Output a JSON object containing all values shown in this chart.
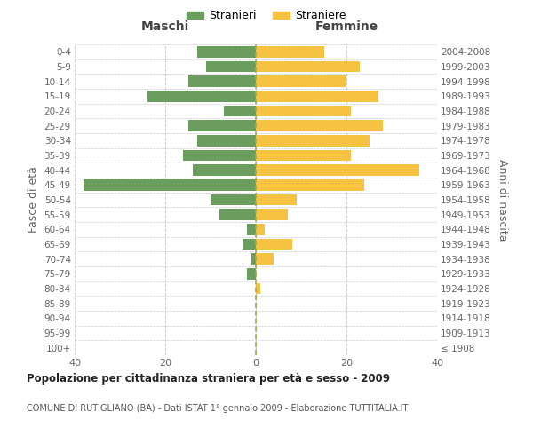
{
  "age_groups": [
    "100+",
    "95-99",
    "90-94",
    "85-89",
    "80-84",
    "75-79",
    "70-74",
    "65-69",
    "60-64",
    "55-59",
    "50-54",
    "45-49",
    "40-44",
    "35-39",
    "30-34",
    "25-29",
    "20-24",
    "15-19",
    "10-14",
    "5-9",
    "0-4"
  ],
  "birth_years": [
    "≤ 1908",
    "1909-1913",
    "1914-1918",
    "1919-1923",
    "1924-1928",
    "1929-1933",
    "1934-1938",
    "1939-1943",
    "1944-1948",
    "1949-1953",
    "1954-1958",
    "1959-1963",
    "1964-1968",
    "1969-1973",
    "1974-1978",
    "1979-1983",
    "1984-1988",
    "1989-1993",
    "1994-1998",
    "1999-2003",
    "2004-2008"
  ],
  "males": [
    0,
    0,
    0,
    0,
    0,
    2,
    1,
    3,
    2,
    8,
    10,
    38,
    14,
    16,
    13,
    15,
    7,
    24,
    15,
    11,
    13
  ],
  "females": [
    0,
    0,
    0,
    0,
    1,
    0,
    4,
    8,
    2,
    7,
    9,
    24,
    36,
    21,
    25,
    28,
    21,
    27,
    20,
    23,
    15
  ],
  "male_color": "#6b9e5e",
  "female_color": "#f5c242",
  "background_color": "#ffffff",
  "grid_color": "#cccccc",
  "title_main": "Popolazione per cittadinanza straniera per età e sesso - 2009",
  "title_sub": "COMUNE DI RUTIGLIANO (BA) - Dati ISTAT 1° gennaio 2009 - Elaborazione TUTTITALIA.IT",
  "ylabel_left": "Fasce di età",
  "ylabel_right": "Anni di nascita",
  "xlabel_left": "Maschi",
  "xlabel_right": "Femmine",
  "xlim": 40,
  "legend_labels": [
    "Stranieri",
    "Straniere"
  ]
}
